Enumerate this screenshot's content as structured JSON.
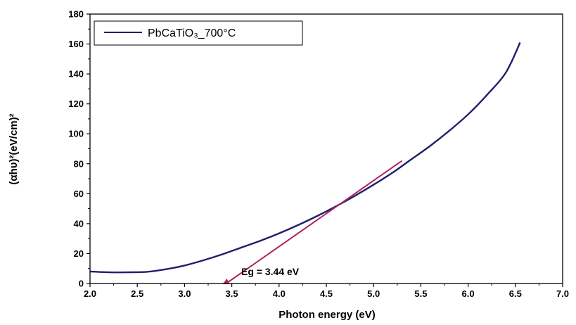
{
  "chart_data": {
    "type": "line",
    "xlabel": "Photon energy (eV)",
    "ylabel": "(αhυ)²(eV/cm)²",
    "xlim": [
      2.0,
      7.0
    ],
    "ylim": [
      0,
      180
    ],
    "x_ticks": [
      2.0,
      2.5,
      3.0,
      3.5,
      4.0,
      4.5,
      5.0,
      5.5,
      6.0,
      6.5,
      7.0
    ],
    "x_tick_labels": [
      "2.0",
      "2.5",
      "3.0",
      "3.5",
      "4.0",
      "4.5",
      "5.0",
      "5.5",
      "6.0",
      "6.5",
      "7.0"
    ],
    "y_ticks": [
      0,
      20,
      40,
      60,
      80,
      100,
      120,
      140,
      160,
      180
    ],
    "y_tick_labels": [
      "0",
      "20",
      "40",
      "60",
      "80",
      "100",
      "120",
      "140",
      "160",
      "180"
    ],
    "grid": false,
    "legend_position": "top-left",
    "series": [
      {
        "name": "PbCaTiO₃_700°C",
        "color": "#1f1f6e",
        "x": [
          2.0,
          2.2,
          2.4,
          2.6,
          2.8,
          3.0,
          3.2,
          3.4,
          3.6,
          3.8,
          4.0,
          4.2,
          4.4,
          4.6,
          4.8,
          5.0,
          5.2,
          5.4,
          5.6,
          5.8,
          6.0,
          6.2,
          6.4,
          6.55
        ],
        "y": [
          8,
          7.5,
          7.5,
          7.8,
          9.5,
          12,
          15.5,
          19.5,
          24,
          28.5,
          33.5,
          39,
          45,
          51.5,
          58.5,
          66,
          74,
          83,
          92,
          102,
          113,
          126,
          141,
          161
        ]
      }
    ],
    "fit_line": {
      "color": "#b0245a",
      "x": [
        3.44,
        5.3
      ],
      "y": [
        0,
        82
      ]
    },
    "annotations": [
      {
        "text": "Eg = 3.44 eV",
        "x": 3.6,
        "y": 8
      }
    ]
  }
}
